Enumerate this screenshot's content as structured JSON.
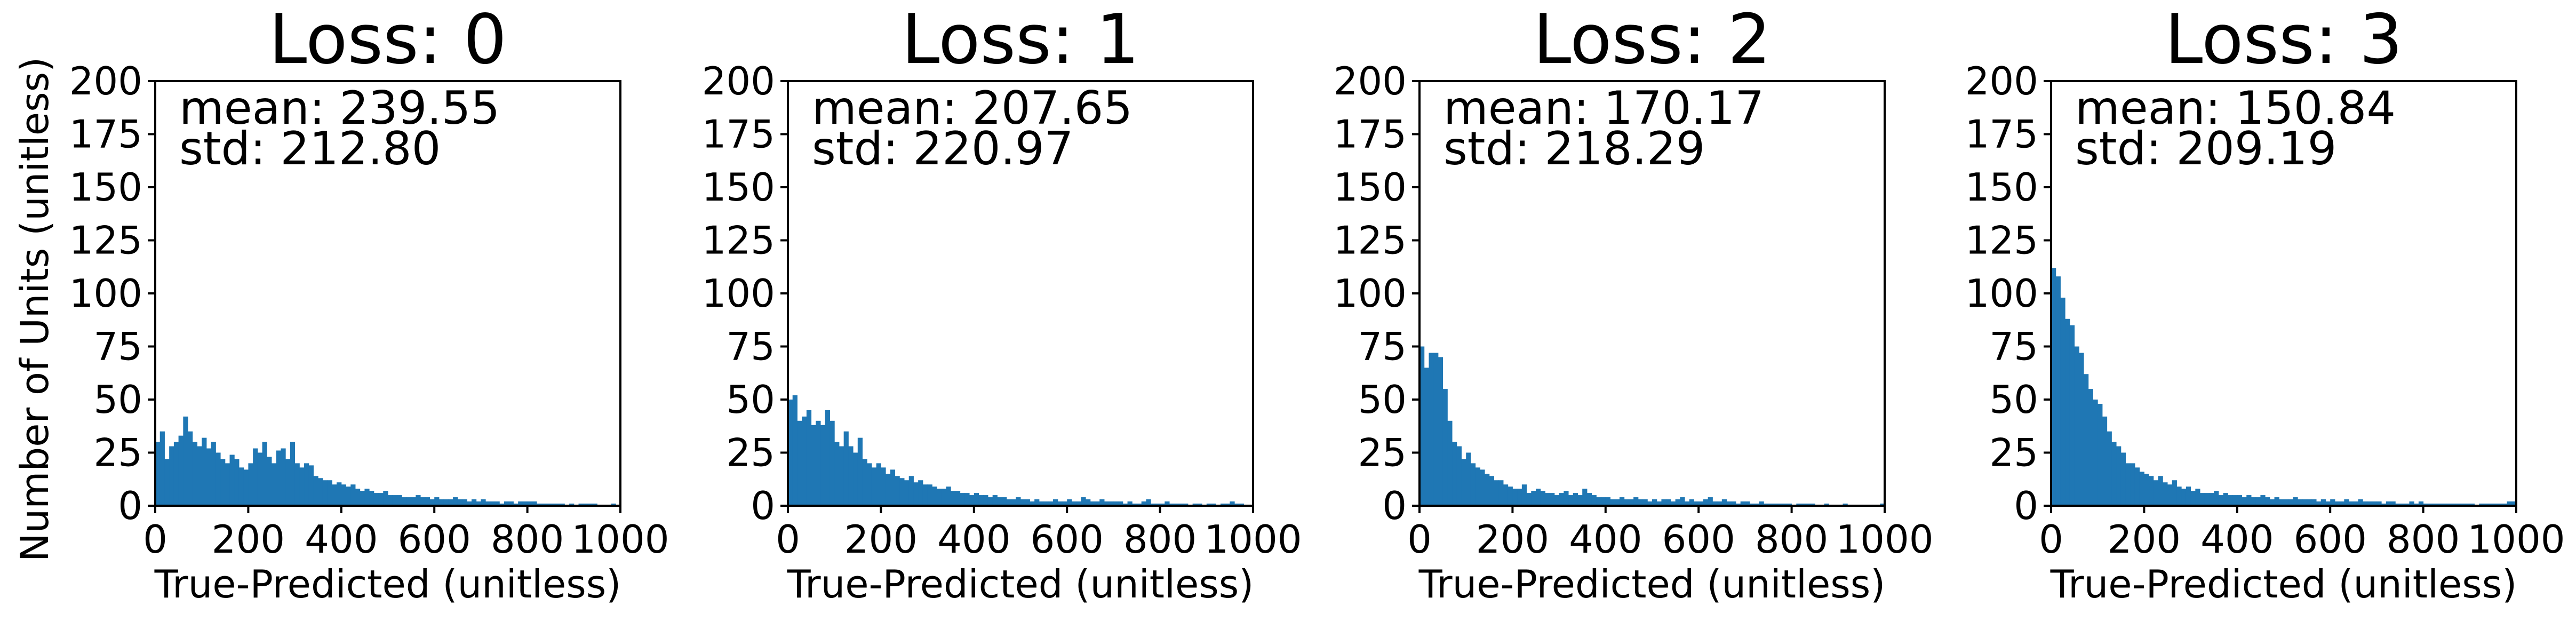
{
  "chart_data": [
    {
      "type": "bar",
      "title": "Loss: 0",
      "xlabel": "True-Predicted  (unitless)",
      "ylabel": "Number of Units (unitless)",
      "stats": {
        "mean": "mean: 239.55",
        "std": "std: 212.80"
      },
      "xlim": [
        0,
        1000
      ],
      "ylim": [
        0,
        200
      ],
      "xticks": [
        "0",
        "200",
        "400",
        "600",
        "800",
        "1000"
      ],
      "yticks": [
        "0",
        "25",
        "50",
        "75",
        "100",
        "125",
        "150",
        "175",
        "200"
      ],
      "bin_width": 10,
      "values": [
        30,
        35,
        22,
        28,
        30,
        33,
        42,
        35,
        30,
        28,
        32,
        27,
        30,
        25,
        22,
        20,
        24,
        22,
        18,
        17,
        20,
        27,
        25,
        30,
        23,
        20,
        26,
        27,
        22,
        30,
        20,
        18,
        20,
        19,
        14,
        13,
        12,
        12,
        10,
        11,
        10,
        9,
        10,
        8,
        7,
        8,
        7,
        6,
        6,
        7,
        5,
        5,
        5,
        4,
        4,
        4,
        5,
        4,
        4,
        3,
        4,
        3,
        3,
        3,
        4,
        3,
        3,
        2,
        3,
        2,
        3,
        2,
        2,
        2,
        1,
        2,
        2,
        1,
        2,
        2,
        2,
        2,
        1,
        1,
        1,
        1,
        1,
        1,
        0,
        1,
        0,
        1,
        1,
        1,
        1,
        0,
        0,
        0,
        1,
        0
      ]
    },
    {
      "type": "bar",
      "title": "Loss: 1",
      "xlabel": "True-Predicted  (unitless)",
      "ylabel": "",
      "stats": {
        "mean": "mean: 207.65",
        "std": "std: 220.97"
      },
      "xlim": [
        0,
        1000
      ],
      "ylim": [
        0,
        200
      ],
      "xticks": [
        "0",
        "200",
        "400",
        "600",
        "800",
        "1000"
      ],
      "yticks": [
        "0",
        "25",
        "50",
        "75",
        "100",
        "125",
        "150",
        "175",
        "200"
      ],
      "bin_width": 10,
      "values": [
        50,
        52,
        40,
        42,
        45,
        38,
        40,
        38,
        45,
        40,
        30,
        28,
        35,
        28,
        25,
        32,
        22,
        20,
        18,
        20,
        18,
        15,
        17,
        14,
        13,
        12,
        14,
        11,
        12,
        10,
        10,
        9,
        8,
        8,
        9,
        7,
        7,
        6,
        6,
        5,
        6,
        5,
        5,
        4,
        5,
        4,
        4,
        3,
        3,
        4,
        3,
        3,
        2,
        3,
        2,
        2,
        2,
        3,
        2,
        2,
        3,
        2,
        2,
        4,
        3,
        2,
        2,
        3,
        2,
        2,
        2,
        2,
        1,
        2,
        1,
        1,
        2,
        3,
        1,
        1,
        1,
        2,
        1,
        1,
        1,
        1,
        0,
        1,
        1,
        0,
        1,
        1,
        0,
        1,
        1,
        2,
        1,
        1,
        0,
        0
      ]
    },
    {
      "type": "bar",
      "title": "Loss: 2",
      "xlabel": "True-Predicted  (unitless)",
      "ylabel": "",
      "stats": {
        "mean": "mean: 170.17",
        "std": "std: 218.29"
      },
      "xlim": [
        0,
        1000
      ],
      "ylim": [
        0,
        200
      ],
      "xticks": [
        "0",
        "200",
        "400",
        "600",
        "800",
        "1000"
      ],
      "yticks": [
        "0",
        "25",
        "50",
        "75",
        "100",
        "125",
        "150",
        "175",
        "200"
      ],
      "bin_width": 10,
      "values": [
        75,
        65,
        72,
        72,
        70,
        55,
        40,
        30,
        28,
        22,
        25,
        20,
        18,
        17,
        15,
        14,
        12,
        12,
        10,
        9,
        8,
        8,
        10,
        6,
        7,
        8,
        7,
        6,
        6,
        5,
        6,
        7,
        5,
        6,
        5,
        8,
        6,
        5,
        4,
        4,
        4,
        3,
        3,
        4,
        3,
        3,
        4,
        3,
        3,
        2,
        3,
        2,
        3,
        3,
        2,
        3,
        4,
        2,
        3,
        2,
        2,
        3,
        4,
        2,
        2,
        3,
        2,
        2,
        1,
        2,
        2,
        1,
        1,
        2,
        1,
        1,
        1,
        1,
        1,
        1,
        0,
        1,
        1,
        1,
        1,
        0,
        0,
        1,
        0,
        0,
        0,
        1,
        0,
        0,
        0,
        0,
        0,
        0,
        0,
        1
      ]
    },
    {
      "type": "bar",
      "title": "Loss: 3",
      "xlabel": "True-Predicted  (unitless)",
      "ylabel": "",
      "stats": {
        "mean": "mean: 150.84",
        "std": "std: 209.19"
      },
      "xlim": [
        0,
        1000
      ],
      "ylim": [
        0,
        200
      ],
      "xticks": [
        "0",
        "200",
        "400",
        "600",
        "800",
        "1000"
      ],
      "yticks": [
        "0",
        "25",
        "50",
        "75",
        "100",
        "125",
        "150",
        "175",
        "200"
      ],
      "bin_width": 10,
      "values": [
        112,
        108,
        98,
        88,
        85,
        75,
        72,
        62,
        55,
        50,
        48,
        42,
        35,
        30,
        28,
        25,
        20,
        20,
        18,
        16,
        15,
        14,
        12,
        14,
        11,
        10,
        12,
        9,
        8,
        9,
        7,
        8,
        6,
        6,
        6,
        7,
        5,
        6,
        5,
        5,
        5,
        4,
        5,
        4,
        4,
        5,
        4,
        3,
        4,
        3,
        3,
        3,
        4,
        3,
        3,
        3,
        3,
        2,
        3,
        2,
        3,
        2,
        2,
        3,
        2,
        2,
        3,
        2,
        2,
        2,
        2,
        1,
        2,
        2,
        1,
        1,
        1,
        2,
        1,
        2,
        1,
        1,
        1,
        1,
        1,
        1,
        1,
        1,
        1,
        1,
        1,
        0,
        1,
        1,
        1,
        1,
        1,
        1,
        2,
        2
      ]
    }
  ],
  "colors": {
    "bar": "#1f77b4",
    "axes": "#000000",
    "background": "#ffffff"
  }
}
